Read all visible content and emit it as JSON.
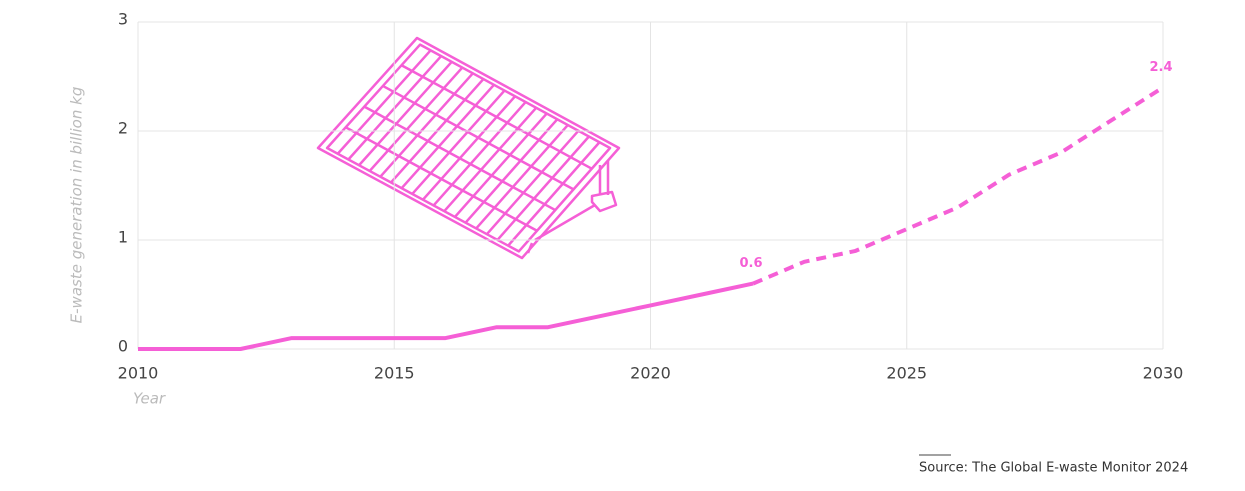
{
  "chart_data": {
    "type": "line",
    "y_label": "E-waste generation in billion kg",
    "x_label": "Year",
    "source": "Source: The Global E-waste Monitor 2024",
    "x": [
      2010,
      2011,
      2012,
      2013,
      2014,
      2015,
      2016,
      2017,
      2018,
      2019,
      2020,
      2021,
      2022,
      2023,
      2024,
      2025,
      2026,
      2027,
      2028,
      2029,
      2030
    ],
    "series": [
      {
        "color": "#f55fd6",
        "dashed": false,
        "labeled": [
          12
        ],
        "values": [
          0,
          0,
          0,
          0.1,
          0.1,
          0.1,
          0.1,
          0.2,
          0.2,
          0.3,
          0.4,
          0.5,
          0.6,
          null,
          null,
          null,
          null,
          null,
          null,
          null,
          null
        ]
      },
      {
        "color": "#f55fd6",
        "dashed": true,
        "labeled": [
          20
        ],
        "values": [
          null,
          null,
          null,
          null,
          null,
          null,
          null,
          null,
          null,
          null,
          null,
          null,
          0.6,
          0.8,
          0.9,
          1.1,
          1.3,
          1.6,
          1.8,
          2.1,
          2.4
        ]
      }
    ],
    "xlim": [
      2010,
      2030
    ],
    "xticks": [
      2010,
      2015,
      2020,
      2025,
      2030
    ],
    "ylim": [
      0,
      3
    ],
    "yticks": [
      0,
      1,
      2,
      3
    ],
    "grid": true
  }
}
